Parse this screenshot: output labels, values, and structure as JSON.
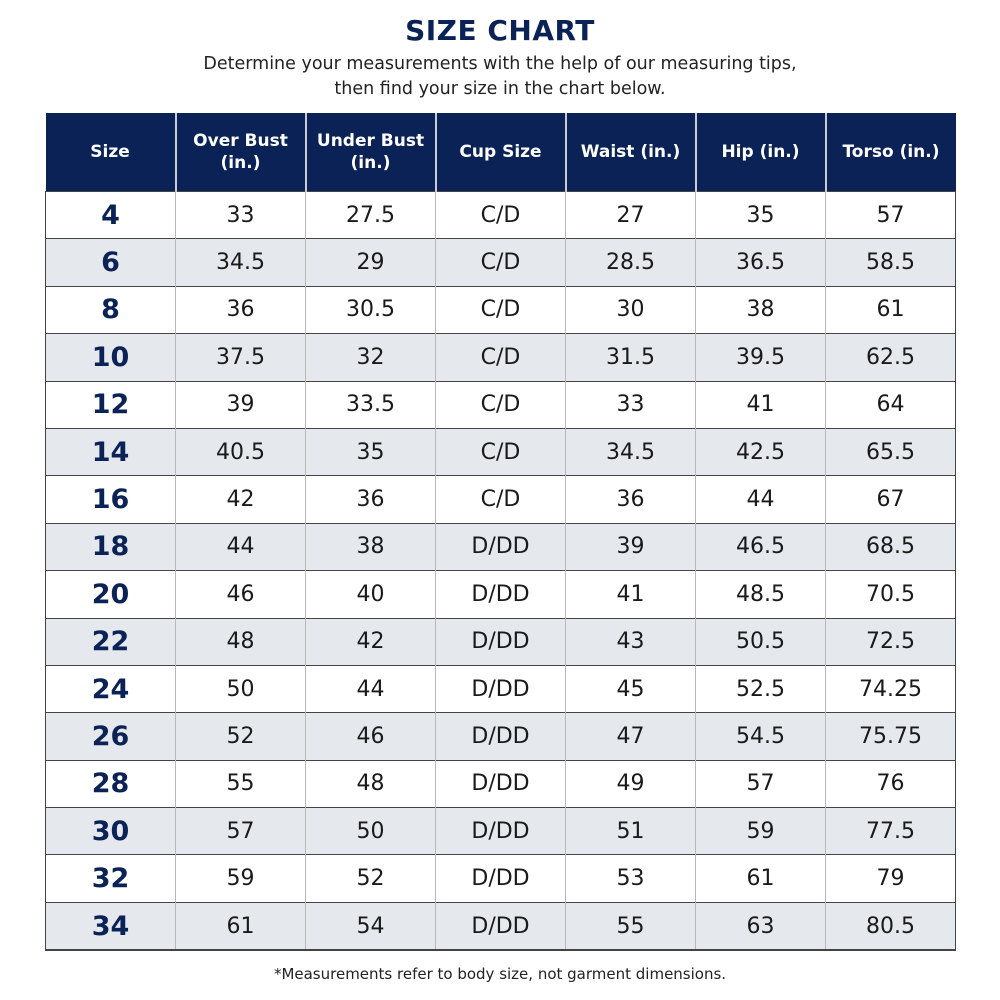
{
  "title": "SIZE CHART",
  "subtitle_line1": "Determine your measurements with the help of our measuring tips,",
  "subtitle_line2": "then find your size in the chart below.",
  "colors": {
    "header": "#0b2257",
    "alt_row": "#e5e8ed"
  },
  "columns": [
    "Size",
    "Over Bust (in.)",
    "Under Bust (in.)",
    "Cup Size",
    "Waist (in.)",
    "Hip (in.)",
    "Torso (in.)"
  ],
  "rows": [
    [
      "4",
      "33",
      "27.5",
      "C/D",
      "27",
      "35",
      "57"
    ],
    [
      "6",
      "34.5",
      "29",
      "C/D",
      "28.5",
      "36.5",
      "58.5"
    ],
    [
      "8",
      "36",
      "30.5",
      "C/D",
      "30",
      "38",
      "61"
    ],
    [
      "10",
      "37.5",
      "32",
      "C/D",
      "31.5",
      "39.5",
      "62.5"
    ],
    [
      "12",
      "39",
      "33.5",
      "C/D",
      "33",
      "41",
      "64"
    ],
    [
      "14",
      "40.5",
      "35",
      "C/D",
      "34.5",
      "42.5",
      "65.5"
    ],
    [
      "16",
      "42",
      "36",
      "C/D",
      "36",
      "44",
      "67"
    ],
    [
      "18",
      "44",
      "38",
      "D/DD",
      "39",
      "46.5",
      "68.5"
    ],
    [
      "20",
      "46",
      "40",
      "D/DD",
      "41",
      "48.5",
      "70.5"
    ],
    [
      "22",
      "48",
      "42",
      "D/DD",
      "43",
      "50.5",
      "72.5"
    ],
    [
      "24",
      "50",
      "44",
      "D/DD",
      "45",
      "52.5",
      "74.25"
    ],
    [
      "26",
      "52",
      "46",
      "D/DD",
      "47",
      "54.5",
      "75.75"
    ],
    [
      "28",
      "55",
      "48",
      "D/DD",
      "49",
      "57",
      "76"
    ],
    [
      "30",
      "57",
      "50",
      "D/DD",
      "51",
      "59",
      "77.5"
    ],
    [
      "32",
      "59",
      "52",
      "D/DD",
      "53",
      "61",
      "79"
    ],
    [
      "34",
      "61",
      "54",
      "D/DD",
      "55",
      "63",
      "80.5"
    ]
  ],
  "footnote": "*Measurements refer to body size, not garment dimensions."
}
